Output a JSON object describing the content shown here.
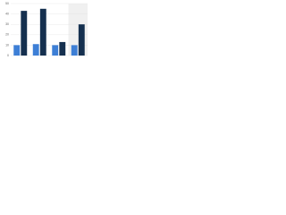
{
  "chart_data": {
    "type": "bar",
    "categories": [
      null,
      null,
      null,
      null
    ],
    "series": [
      {
        "color": "#3d7fd6",
        "values": [
          10,
          11,
          10,
          10
        ]
      },
      {
        "color": "#15304f",
        "values": [
          43,
          45,
          13,
          30
        ]
      }
    ],
    "ylim": [
      0,
      50
    ],
    "yticks": [
      0,
      10,
      20,
      30,
      40,
      50
    ],
    "grid": true
  }
}
